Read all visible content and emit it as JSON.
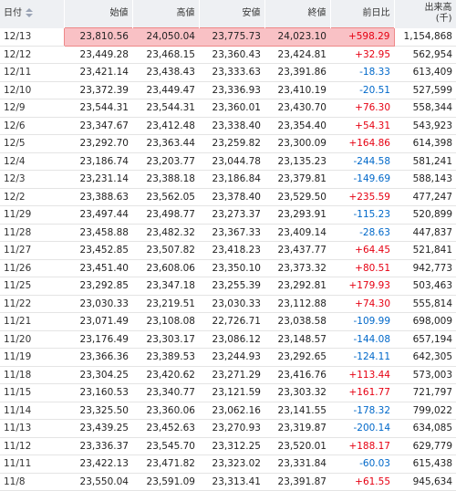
{
  "table": {
    "columns": [
      "日付",
      "始値",
      "高値",
      "安値",
      "終値",
      "前日比",
      "出来高"
    ],
    "volume_unit": "(千)",
    "up_color": "#e60012",
    "down_color": "#0068c9",
    "rows": [
      [
        "12/13",
        "23,810.56",
        "24,050.04",
        "23,775.73",
        "24,023.10",
        "+598.29",
        "1,154,868"
      ],
      [
        "12/12",
        "23,449.28",
        "23,468.15",
        "23,360.43",
        "23,424.81",
        "+32.95",
        "562,954"
      ],
      [
        "12/11",
        "23,421.14",
        "23,438.43",
        "23,333.63",
        "23,391.86",
        "-18.33",
        "613,409"
      ],
      [
        "12/10",
        "23,372.39",
        "23,449.47",
        "23,336.93",
        "23,410.19",
        "-20.51",
        "527,599"
      ],
      [
        "12/9",
        "23,544.31",
        "23,544.31",
        "23,360.01",
        "23,430.70",
        "+76.30",
        "558,344"
      ],
      [
        "12/6",
        "23,347.67",
        "23,412.48",
        "23,338.40",
        "23,354.40",
        "+54.31",
        "543,923"
      ],
      [
        "12/5",
        "23,292.70",
        "23,363.44",
        "23,259.82",
        "23,300.09",
        "+164.86",
        "614,398"
      ],
      [
        "12/4",
        "23,186.74",
        "23,203.77",
        "23,044.78",
        "23,135.23",
        "-244.58",
        "581,241"
      ],
      [
        "12/3",
        "23,231.14",
        "23,388.18",
        "23,186.84",
        "23,379.81",
        "-149.69",
        "588,143"
      ],
      [
        "12/2",
        "23,388.63",
        "23,562.05",
        "23,378.40",
        "23,529.50",
        "+235.59",
        "477,247"
      ],
      [
        "11/29",
        "23,497.44",
        "23,498.77",
        "23,273.37",
        "23,293.91",
        "-115.23",
        "520,899"
      ],
      [
        "11/28",
        "23,458.88",
        "23,482.32",
        "23,367.33",
        "23,409.14",
        "-28.63",
        "447,837"
      ],
      [
        "11/27",
        "23,452.85",
        "23,507.82",
        "23,418.23",
        "23,437.77",
        "+64.45",
        "521,841"
      ],
      [
        "11/26",
        "23,451.40",
        "23,608.06",
        "23,350.10",
        "23,373.32",
        "+80.51",
        "942,773"
      ],
      [
        "11/25",
        "23,292.85",
        "23,347.18",
        "23,255.39",
        "23,292.81",
        "+179.93",
        "503,463"
      ],
      [
        "11/22",
        "23,030.33",
        "23,219.51",
        "23,030.33",
        "23,112.88",
        "+74.30",
        "555,814"
      ],
      [
        "11/21",
        "23,071.49",
        "23,108.08",
        "22,726.71",
        "23,038.58",
        "-109.99",
        "698,009"
      ],
      [
        "11/20",
        "23,176.49",
        "23,303.17",
        "23,086.12",
        "23,148.57",
        "-144.08",
        "657,194"
      ],
      [
        "11/19",
        "23,366.36",
        "23,389.53",
        "23,244.93",
        "23,292.65",
        "-124.11",
        "642,305"
      ],
      [
        "11/18",
        "23,304.25",
        "23,420.62",
        "23,271.29",
        "23,416.76",
        "+113.44",
        "573,003"
      ],
      [
        "11/15",
        "23,160.53",
        "23,340.77",
        "23,121.59",
        "23,303.32",
        "+161.77",
        "721,797"
      ],
      [
        "11/14",
        "23,325.50",
        "23,360.06",
        "23,062.16",
        "23,141.55",
        "-178.32",
        "799,022"
      ],
      [
        "11/13",
        "23,439.25",
        "23,452.63",
        "23,270.93",
        "23,319.87",
        "-200.14",
        "634,085"
      ],
      [
        "11/12",
        "23,336.37",
        "23,545.70",
        "23,312.25",
        "23,520.01",
        "+188.17",
        "629,779"
      ],
      [
        "11/11",
        "23,422.13",
        "23,471.82",
        "23,323.02",
        "23,331.84",
        "-60.03",
        "615,438"
      ],
      [
        "11/8",
        "23,550.04",
        "23,591.09",
        "23,313.41",
        "23,391.87",
        "+61.55",
        "945,634"
      ]
    ]
  }
}
